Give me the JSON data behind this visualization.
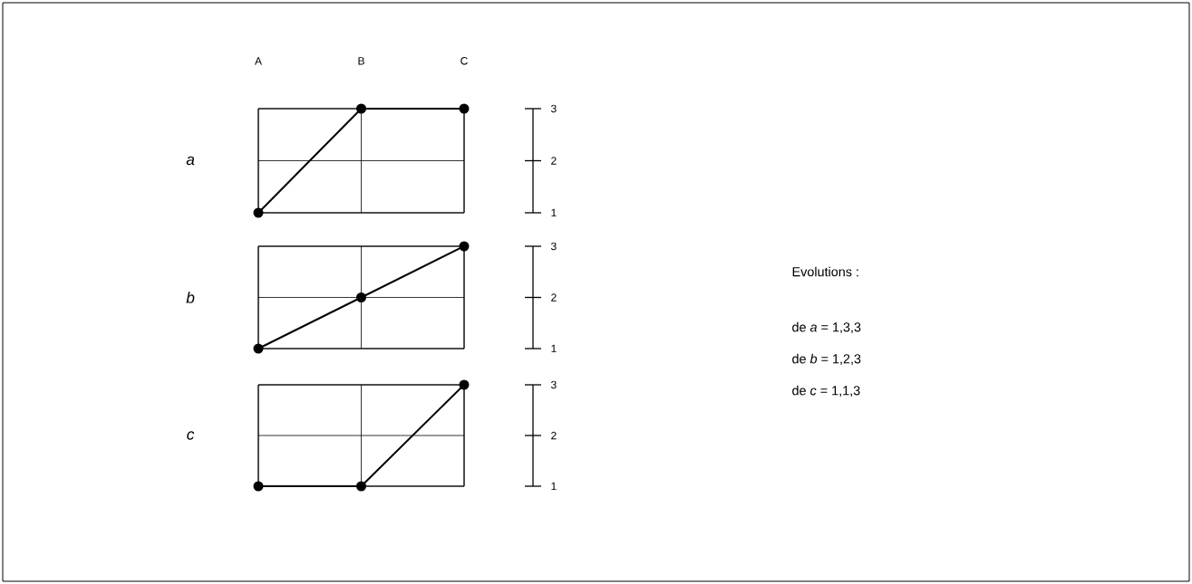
{
  "chart_data": [
    {
      "type": "line",
      "ylabel": "a",
      "categories": [
        "A",
        "B",
        "C"
      ],
      "values": [
        1,
        3,
        3
      ],
      "color": "#000000",
      "ylim": [
        1,
        3
      ],
      "yticks": [
        1,
        2,
        3
      ],
      "grid": true,
      "marker": "circle"
    },
    {
      "type": "line",
      "ylabel": "b",
      "categories": [
        null,
        null,
        null
      ],
      "values": [
        1,
        2,
        3
      ],
      "color": "#000000",
      "ylim": [
        1,
        3
      ],
      "yticks": [
        1,
        2,
        3
      ],
      "grid": true,
      "marker": "circle",
      "tick_labels": "y"
    },
    {
      "type": "line",
      "ylabel": "c",
      "categories": [
        null,
        null,
        null
      ],
      "values": [
        1,
        1,
        3
      ],
      "color": "#000000",
      "ylim": [
        1,
        3
      ],
      "yticks": [
        1,
        2,
        3
      ],
      "grid": true,
      "marker": "circle",
      "tick_labels": "y"
    },
    {
      "type": "other",
      "title": "Evolutions :",
      "annotations": [
        "de *a* = 1,3,3",
        "de *b* = 1,2,3",
        "de *c* = 1,1,3"
      ]
    }
  ]
}
